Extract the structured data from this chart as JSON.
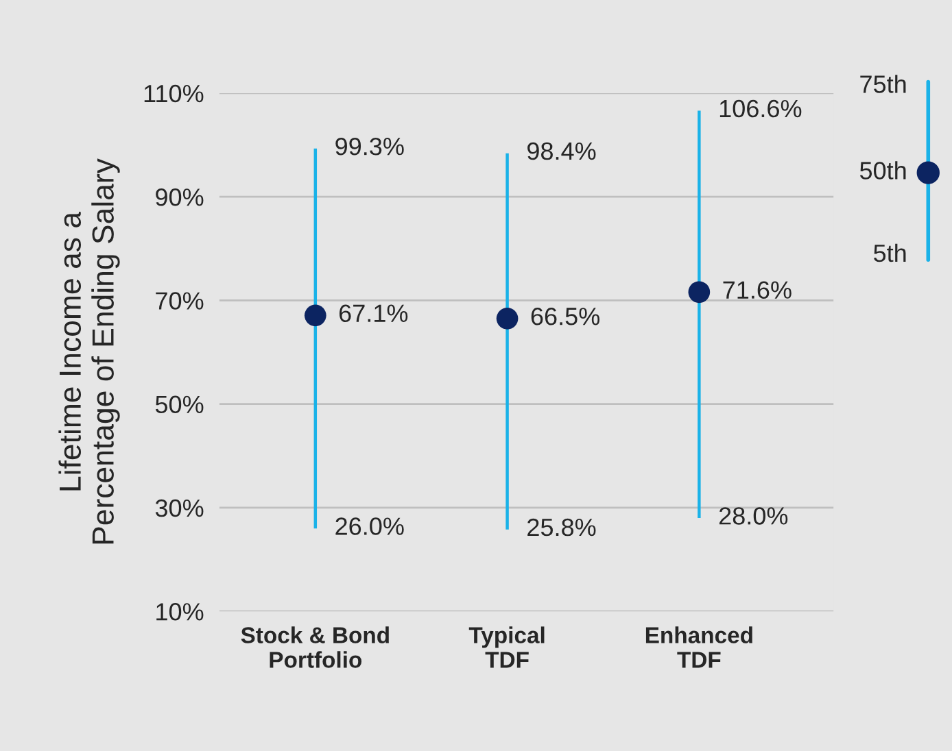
{
  "chart_data": {
    "type": "bar",
    "ylabel": "Lifetime Income as a\nPercentage of Ending Salary",
    "categories": [
      "Stock & Bond\nPortfolio",
      "Typical\nTDF",
      "Enhanced\nTDF"
    ],
    "series": [
      {
        "color": "#1ab2e8",
        "base": [
          26.0,
          25.8,
          28.0
        ],
        "values": [
          73.3,
          72.6,
          78.6
        ]
      },
      {
        "type": "scatter",
        "color": "#0c2461",
        "x": [
          "Stock & Bond\nPortfolio",
          "Typical\nTDF",
          "Enhanced\nTDF"
        ],
        "values": [
          67.1,
          66.5,
          71.6
        ],
        "value_labels": [
          "67.1%",
          "66.5%",
          "71.6%"
        ]
      }
    ],
    "annotations": [
      {
        "text": "99.3%",
        "x": "Stock & Bond\nPortfolio",
        "y": 99.3
      },
      {
        "text": "26.0%",
        "x": "Stock & Bond\nPortfolio",
        "y": 26.0
      },
      {
        "text": "98.4%",
        "x": "Typical\nTDF",
        "y": 98.4
      },
      {
        "text": "25.8%",
        "x": "Typical\nTDF",
        "y": 25.8
      },
      {
        "text": "106.6%",
        "x": "Enhanced\nTDF",
        "y": 106.6
      },
      {
        "text": "28.0%",
        "x": "Enhanced\nTDF",
        "y": 28.0
      },
      "75th",
      "50th",
      "5th"
    ],
    "ylim": [
      10,
      110
    ],
    "yticks": [
      {
        "value": 10,
        "label": "10%"
      },
      {
        "value": 30,
        "label": "30%"
      },
      {
        "value": 50,
        "label": "50%"
      },
      {
        "value": 70,
        "label": "70%"
      },
      {
        "value": 90,
        "label": "90%"
      },
      {
        "value": 110,
        "label": "110%"
      }
    ],
    "grid": "y",
    "marker": "circle"
  }
}
